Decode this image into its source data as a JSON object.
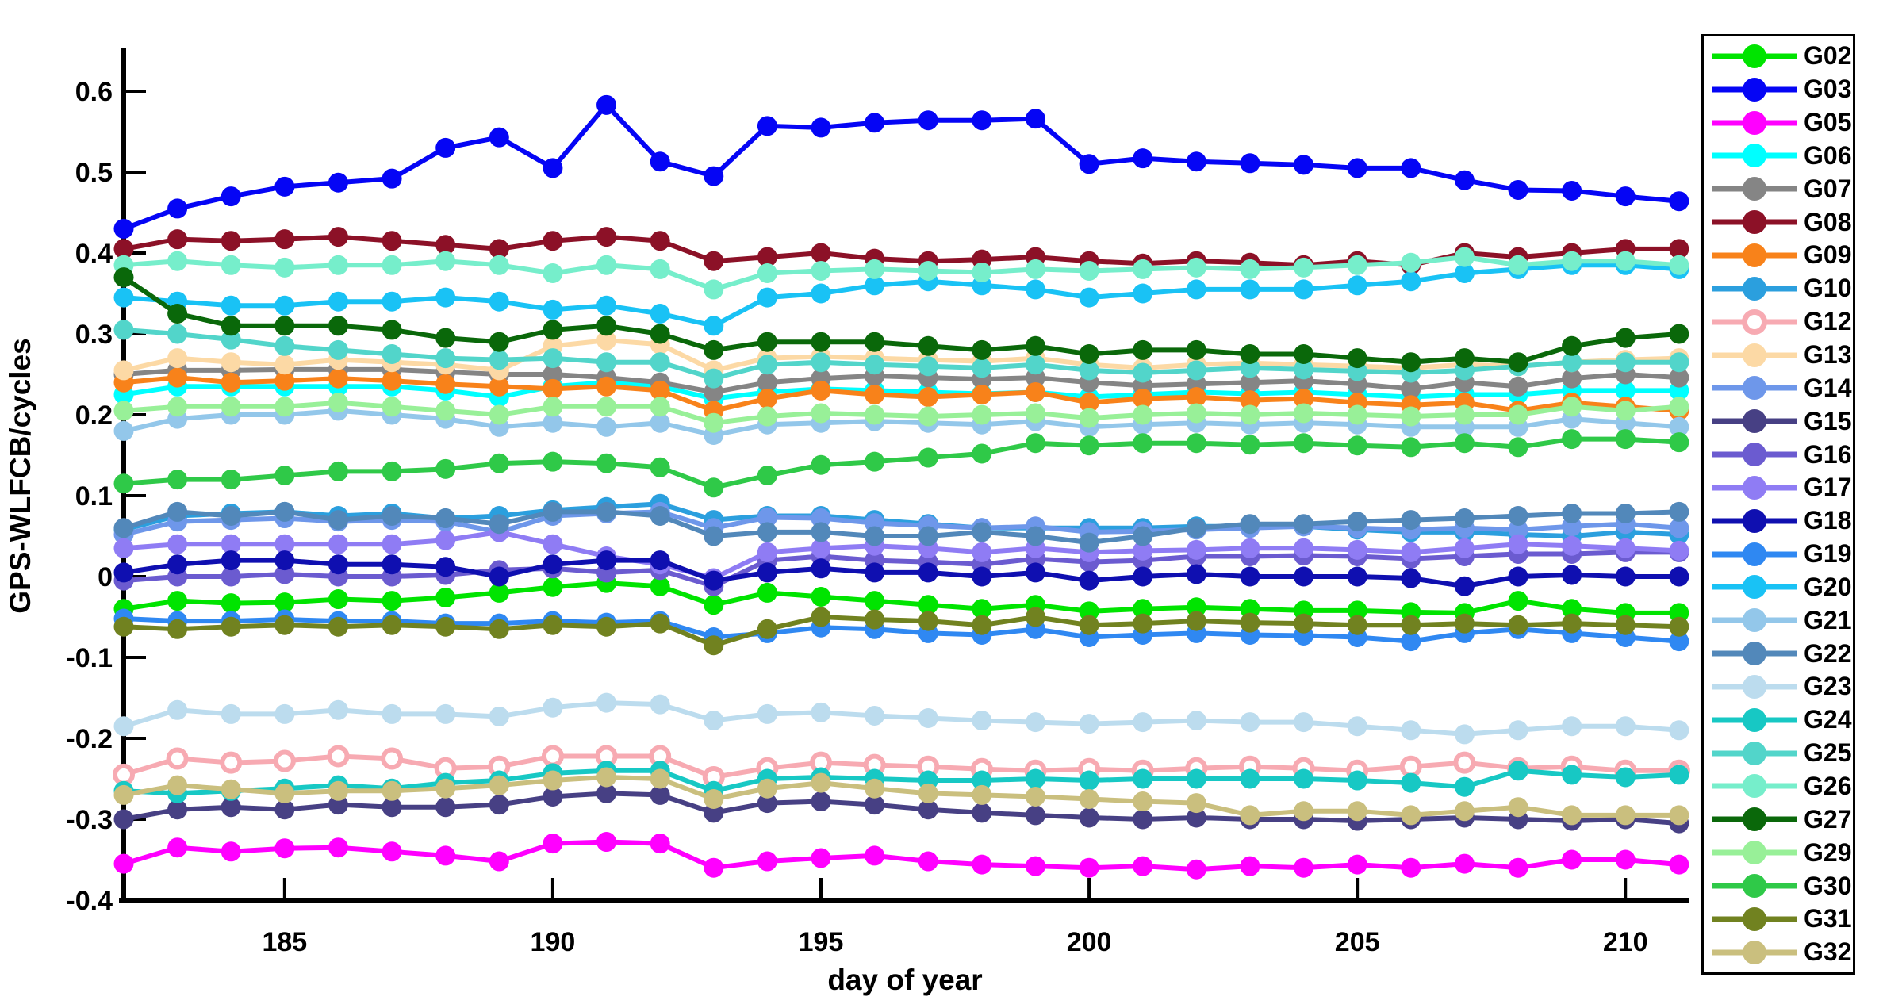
{
  "figure": {
    "background": "#ffffff",
    "axis_color": "#000000"
  },
  "chart_data": {
    "type": "line",
    "title": "",
    "xlabel": "day of year",
    "ylabel": "GPS-WLFCB/cycles",
    "grid": false,
    "legend_position": "right-outside",
    "xlim": [
      182,
      211.15
    ],
    "ylim": [
      -0.4,
      0.65
    ],
    "xticks": [
      185,
      190,
      195,
      200,
      205,
      210
    ],
    "yticks": [
      0.6,
      0.5,
      0.4,
      0.3,
      0.2,
      0.1,
      0,
      -0.1,
      -0.2,
      -0.3,
      -0.4
    ],
    "ytick_labels": [
      "0.6",
      "0.5",
      "0.4",
      "0.3",
      "0.2",
      "0.1",
      "0",
      "-0.1",
      "-0.2",
      "-0.3",
      "-0.4"
    ],
    "x": [
      182,
      183,
      184,
      185,
      186,
      187,
      188,
      189,
      190,
      191,
      192,
      193,
      194,
      195,
      196,
      197,
      198,
      199,
      200,
      201,
      202,
      203,
      204,
      205,
      206,
      207,
      208,
      209,
      210,
      211
    ],
    "series": [
      {
        "name": "G02",
        "color": "#00E400",
        "open_marker": false,
        "values": [
          -0.04,
          -0.03,
          -0.033,
          -0.032,
          -0.028,
          -0.03,
          -0.026,
          -0.02,
          -0.013,
          -0.008,
          -0.012,
          -0.035,
          -0.02,
          -0.025,
          -0.03,
          -0.035,
          -0.04,
          -0.035,
          -0.043,
          -0.04,
          -0.038,
          -0.04,
          -0.042,
          -0.042,
          -0.044,
          -0.045,
          -0.03,
          -0.04,
          -0.045,
          -0.045
        ]
      },
      {
        "name": "G03",
        "color": "#0505F5",
        "open_marker": false,
        "values": [
          0.43,
          0.455,
          0.47,
          0.482,
          0.487,
          0.492,
          0.53,
          0.543,
          0.505,
          0.583,
          0.513,
          0.495,
          0.557,
          0.555,
          0.561,
          0.564,
          0.564,
          0.566,
          0.51,
          0.517,
          0.513,
          0.511,
          0.509,
          0.505,
          0.505,
          0.49,
          0.478,
          0.477,
          0.47,
          0.464
        ]
      },
      {
        "name": "G05",
        "color": "#FF00FF",
        "open_marker": false,
        "values": [
          -0.355,
          -0.335,
          -0.34,
          -0.336,
          -0.335,
          -0.34,
          -0.345,
          -0.352,
          -0.33,
          -0.328,
          -0.33,
          -0.36,
          -0.352,
          -0.348,
          -0.345,
          -0.352,
          -0.356,
          -0.358,
          -0.36,
          -0.358,
          -0.362,
          -0.358,
          -0.36,
          -0.356,
          -0.36,
          -0.355,
          -0.36,
          -0.35,
          -0.35,
          -0.356
        ]
      },
      {
        "name": "G06",
        "color": "#00FFFF",
        "open_marker": false,
        "values": [
          0.225,
          0.235,
          0.235,
          0.235,
          0.235,
          0.235,
          0.23,
          0.222,
          0.235,
          0.24,
          0.235,
          0.22,
          0.228,
          0.232,
          0.23,
          0.228,
          0.226,
          0.228,
          0.222,
          0.225,
          0.228,
          0.226,
          0.228,
          0.225,
          0.222,
          0.225,
          0.225,
          0.23,
          0.23,
          0.23
        ]
      },
      {
        "name": "G07",
        "color": "#858585",
        "open_marker": false,
        "values": [
          0.25,
          0.255,
          0.255,
          0.256,
          0.256,
          0.256,
          0.253,
          0.25,
          0.25,
          0.246,
          0.24,
          0.228,
          0.24,
          0.245,
          0.248,
          0.246,
          0.244,
          0.246,
          0.24,
          0.236,
          0.238,
          0.24,
          0.242,
          0.238,
          0.232,
          0.24,
          0.235,
          0.245,
          0.25,
          0.246
        ]
      },
      {
        "name": "G08",
        "color": "#8C1127",
        "open_marker": false,
        "values": [
          0.405,
          0.417,
          0.415,
          0.417,
          0.42,
          0.415,
          0.41,
          0.405,
          0.415,
          0.42,
          0.415,
          0.39,
          0.395,
          0.4,
          0.393,
          0.39,
          0.392,
          0.395,
          0.39,
          0.387,
          0.39,
          0.388,
          0.385,
          0.39,
          0.385,
          0.4,
          0.395,
          0.4,
          0.405,
          0.405
        ]
      },
      {
        "name": "G09",
        "color": "#F8821A",
        "open_marker": false,
        "values": [
          0.24,
          0.246,
          0.24,
          0.242,
          0.245,
          0.242,
          0.238,
          0.235,
          0.232,
          0.235,
          0.23,
          0.205,
          0.22,
          0.23,
          0.225,
          0.222,
          0.225,
          0.228,
          0.215,
          0.22,
          0.222,
          0.218,
          0.22,
          0.215,
          0.212,
          0.215,
          0.205,
          0.215,
          0.21,
          0.205
        ]
      },
      {
        "name": "G10",
        "color": "#2B9FDE",
        "open_marker": false,
        "values": [
          0.058,
          0.075,
          0.078,
          0.08,
          0.075,
          0.078,
          0.072,
          0.075,
          0.082,
          0.086,
          0.09,
          0.07,
          0.075,
          0.075,
          0.07,
          0.065,
          0.06,
          0.06,
          0.06,
          0.06,
          0.062,
          0.062,
          0.062,
          0.058,
          0.055,
          0.055,
          0.052,
          0.05,
          0.055,
          0.052
        ]
      },
      {
        "name": "G12",
        "color": "#F7AAB2",
        "open_marker": true,
        "values": [
          -0.245,
          -0.225,
          -0.23,
          -0.228,
          -0.222,
          -0.225,
          -0.237,
          -0.235,
          -0.222,
          -0.222,
          -0.222,
          -0.248,
          -0.237,
          -0.23,
          -0.233,
          -0.235,
          -0.238,
          -0.24,
          -0.238,
          -0.24,
          -0.237,
          -0.235,
          -0.237,
          -0.24,
          -0.235,
          -0.23,
          -0.237,
          -0.235,
          -0.24,
          -0.24
        ]
      },
      {
        "name": "G13",
        "color": "#FCD9A5",
        "open_marker": false,
        "values": [
          0.255,
          0.27,
          0.265,
          0.262,
          0.268,
          0.265,
          0.262,
          0.255,
          0.285,
          0.292,
          0.287,
          0.255,
          0.27,
          0.272,
          0.27,
          0.268,
          0.266,
          0.27,
          0.262,
          0.258,
          0.262,
          0.264,
          0.262,
          0.26,
          0.258,
          0.262,
          0.26,
          0.265,
          0.268,
          0.27
        ]
      },
      {
        "name": "G14",
        "color": "#6E97EA",
        "open_marker": false,
        "values": [
          0.052,
          0.068,
          0.07,
          0.072,
          0.068,
          0.07,
          0.068,
          0.055,
          0.075,
          0.078,
          0.08,
          0.06,
          0.073,
          0.072,
          0.066,
          0.063,
          0.06,
          0.062,
          0.055,
          0.056,
          0.058,
          0.06,
          0.062,
          0.06,
          0.058,
          0.06,
          0.058,
          0.062,
          0.065,
          0.06
        ]
      },
      {
        "name": "G15",
        "color": "#474084",
        "open_marker": false,
        "values": [
          -0.3,
          -0.288,
          -0.285,
          -0.288,
          -0.282,
          -0.285,
          -0.285,
          -0.282,
          -0.272,
          -0.268,
          -0.27,
          -0.292,
          -0.28,
          -0.278,
          -0.282,
          -0.288,
          -0.292,
          -0.295,
          -0.298,
          -0.3,
          -0.298,
          -0.3,
          -0.3,
          -0.302,
          -0.3,
          -0.298,
          -0.3,
          -0.302,
          -0.3,
          -0.305
        ]
      },
      {
        "name": "G16",
        "color": "#6B5BD0",
        "open_marker": false,
        "values": [
          -0.005,
          0.0,
          0.0,
          0.003,
          0.0,
          0.0,
          0.002,
          0.008,
          0.01,
          0.005,
          0.008,
          -0.012,
          0.02,
          0.025,
          0.02,
          0.018,
          0.015,
          0.022,
          0.018,
          0.02,
          0.025,
          0.025,
          0.026,
          0.025,
          0.022,
          0.025,
          0.028,
          0.028,
          0.03,
          0.03
        ]
      },
      {
        "name": "G17",
        "color": "#8F7CF4",
        "open_marker": false,
        "values": [
          0.035,
          0.04,
          0.04,
          0.04,
          0.04,
          0.04,
          0.045,
          0.055,
          0.04,
          0.025,
          0.015,
          -0.002,
          0.03,
          0.035,
          0.038,
          0.035,
          0.03,
          0.035,
          0.03,
          0.032,
          0.033,
          0.035,
          0.035,
          0.033,
          0.03,
          0.035,
          0.04,
          0.038,
          0.035,
          0.032
        ]
      },
      {
        "name": "G18",
        "color": "#0F0FB0",
        "open_marker": false,
        "values": [
          0.005,
          0.015,
          0.02,
          0.02,
          0.015,
          0.015,
          0.012,
          0.0,
          0.015,
          0.02,
          0.02,
          -0.005,
          0.005,
          0.01,
          0.005,
          0.005,
          0.0,
          0.005,
          -0.005,
          0.0,
          0.003,
          0.0,
          0.0,
          0.0,
          -0.002,
          -0.012,
          0.0,
          0.002,
          0.0,
          0.0
        ]
      },
      {
        "name": "G19",
        "color": "#2F88F2",
        "open_marker": false,
        "values": [
          -0.052,
          -0.055,
          -0.055,
          -0.053,
          -0.055,
          -0.055,
          -0.058,
          -0.058,
          -0.055,
          -0.057,
          -0.055,
          -0.075,
          -0.07,
          -0.063,
          -0.065,
          -0.07,
          -0.072,
          -0.065,
          -0.075,
          -0.072,
          -0.07,
          -0.072,
          -0.073,
          -0.075,
          -0.08,
          -0.07,
          -0.065,
          -0.07,
          -0.075,
          -0.08
        ]
      },
      {
        "name": "G20",
        "color": "#19C2F5",
        "open_marker": false,
        "values": [
          0.345,
          0.34,
          0.335,
          0.335,
          0.34,
          0.34,
          0.345,
          0.34,
          0.33,
          0.335,
          0.325,
          0.31,
          0.345,
          0.35,
          0.36,
          0.365,
          0.36,
          0.355,
          0.345,
          0.35,
          0.355,
          0.355,
          0.355,
          0.36,
          0.365,
          0.375,
          0.38,
          0.385,
          0.385,
          0.38
        ]
      },
      {
        "name": "G21",
        "color": "#93C7EA",
        "open_marker": false,
        "values": [
          0.18,
          0.195,
          0.2,
          0.2,
          0.205,
          0.2,
          0.195,
          0.185,
          0.19,
          0.185,
          0.19,
          0.175,
          0.188,
          0.19,
          0.192,
          0.19,
          0.188,
          0.192,
          0.185,
          0.188,
          0.19,
          0.188,
          0.19,
          0.188,
          0.185,
          0.185,
          0.185,
          0.195,
          0.19,
          0.185
        ]
      },
      {
        "name": "G22",
        "color": "#5288BA",
        "open_marker": false,
        "values": [
          0.06,
          0.08,
          0.075,
          0.08,
          0.07,
          0.075,
          0.072,
          0.065,
          0.08,
          0.08,
          0.075,
          0.05,
          0.055,
          0.055,
          0.05,
          0.05,
          0.055,
          0.05,
          0.042,
          0.05,
          0.06,
          0.065,
          0.065,
          0.068,
          0.07,
          0.072,
          0.075,
          0.078,
          0.078,
          0.08
        ]
      },
      {
        "name": "G23",
        "color": "#BCDCEE",
        "open_marker": false,
        "values": [
          -0.185,
          -0.165,
          -0.17,
          -0.17,
          -0.165,
          -0.17,
          -0.17,
          -0.173,
          -0.162,
          -0.156,
          -0.158,
          -0.178,
          -0.17,
          -0.168,
          -0.172,
          -0.175,
          -0.178,
          -0.18,
          -0.182,
          -0.18,
          -0.178,
          -0.18,
          -0.18,
          -0.185,
          -0.19,
          -0.195,
          -0.19,
          -0.185,
          -0.185,
          -0.19
        ]
      },
      {
        "name": "G24",
        "color": "#17C8C4",
        "open_marker": false,
        "values": [
          -0.265,
          -0.268,
          -0.265,
          -0.262,
          -0.258,
          -0.262,
          -0.255,
          -0.252,
          -0.243,
          -0.24,
          -0.24,
          -0.265,
          -0.25,
          -0.248,
          -0.25,
          -0.252,
          -0.252,
          -0.25,
          -0.252,
          -0.25,
          -0.25,
          -0.25,
          -0.25,
          -0.252,
          -0.255,
          -0.26,
          -0.24,
          -0.245,
          -0.248,
          -0.245
        ]
      },
      {
        "name": "G25",
        "color": "#52D5CA",
        "open_marker": false,
        "values": [
          0.305,
          0.3,
          0.293,
          0.285,
          0.28,
          0.275,
          0.27,
          0.268,
          0.27,
          0.265,
          0.265,
          0.245,
          0.262,
          0.265,
          0.262,
          0.26,
          0.258,
          0.262,
          0.255,
          0.252,
          0.255,
          0.258,
          0.256,
          0.254,
          0.252,
          0.255,
          0.26,
          0.265,
          0.265,
          0.265
        ]
      },
      {
        "name": "G26",
        "color": "#76EECB",
        "open_marker": false,
        "values": [
          0.385,
          0.39,
          0.385,
          0.382,
          0.385,
          0.385,
          0.39,
          0.385,
          0.375,
          0.385,
          0.38,
          0.355,
          0.375,
          0.378,
          0.38,
          0.378,
          0.376,
          0.38,
          0.378,
          0.38,
          0.382,
          0.38,
          0.382,
          0.385,
          0.388,
          0.395,
          0.385,
          0.39,
          0.39,
          0.385
        ]
      },
      {
        "name": "G27",
        "color": "#0A680A",
        "open_marker": false,
        "values": [
          0.37,
          0.325,
          0.31,
          0.31,
          0.31,
          0.305,
          0.295,
          0.29,
          0.305,
          0.31,
          0.3,
          0.28,
          0.29,
          0.29,
          0.29,
          0.285,
          0.28,
          0.285,
          0.275,
          0.28,
          0.28,
          0.275,
          0.275,
          0.27,
          0.265,
          0.27,
          0.265,
          0.285,
          0.295,
          0.3
        ]
      },
      {
        "name": "G29",
        "color": "#98F098",
        "open_marker": false,
        "values": [
          0.205,
          0.21,
          0.21,
          0.21,
          0.215,
          0.21,
          0.205,
          0.2,
          0.21,
          0.21,
          0.21,
          0.19,
          0.198,
          0.202,
          0.2,
          0.198,
          0.2,
          0.202,
          0.196,
          0.2,
          0.202,
          0.2,
          0.202,
          0.2,
          0.198,
          0.2,
          0.2,
          0.21,
          0.205,
          0.21
        ]
      },
      {
        "name": "G30",
        "color": "#2FC948",
        "open_marker": false,
        "values": [
          0.115,
          0.12,
          0.12,
          0.125,
          0.13,
          0.13,
          0.133,
          0.14,
          0.142,
          0.14,
          0.135,
          0.11,
          0.125,
          0.138,
          0.142,
          0.147,
          0.152,
          0.165,
          0.162,
          0.165,
          0.165,
          0.163,
          0.165,
          0.162,
          0.16,
          0.165,
          0.16,
          0.17,
          0.17,
          0.166
        ]
      },
      {
        "name": "G31",
        "color": "#718220",
        "open_marker": false,
        "values": [
          -0.062,
          -0.065,
          -0.062,
          -0.06,
          -0.062,
          -0.06,
          -0.062,
          -0.065,
          -0.06,
          -0.062,
          -0.058,
          -0.085,
          -0.065,
          -0.05,
          -0.053,
          -0.055,
          -0.06,
          -0.05,
          -0.06,
          -0.058,
          -0.055,
          -0.057,
          -0.058,
          -0.06,
          -0.06,
          -0.058,
          -0.06,
          -0.058,
          -0.06,
          -0.062
        ]
      },
      {
        "name": "G32",
        "color": "#CABF7E",
        "open_marker": false,
        "values": [
          -0.27,
          -0.258,
          -0.263,
          -0.268,
          -0.265,
          -0.265,
          -0.262,
          -0.258,
          -0.252,
          -0.248,
          -0.25,
          -0.275,
          -0.262,
          -0.255,
          -0.262,
          -0.268,
          -0.27,
          -0.272,
          -0.275,
          -0.278,
          -0.28,
          -0.295,
          -0.29,
          -0.29,
          -0.295,
          -0.29,
          -0.285,
          -0.295,
          -0.295,
          -0.295
        ]
      }
    ]
  }
}
